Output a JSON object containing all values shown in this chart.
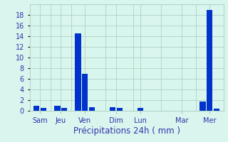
{
  "title": "Précipitations 24h ( mm )",
  "bar_color": "#0033cc",
  "background_color": "#d8f5ee",
  "grid_color": "#aaccbb",
  "text_color": "#3333aa",
  "ylim": [
    0,
    20
  ],
  "yticks": [
    0,
    2,
    4,
    6,
    8,
    10,
    12,
    14,
    16,
    18
  ],
  "day_labels": [
    "Sam",
    "Jeu",
    "Ven",
    "Dim",
    "Lun",
    "Mar",
    "Mer"
  ],
  "bar_positions": [
    1,
    2,
    4,
    5,
    7,
    8,
    9,
    12,
    13,
    16,
    22,
    25,
    26,
    27
  ],
  "bar_values": [
    1.0,
    0.5,
    1.0,
    0.6,
    14.5,
    7.0,
    0.7,
    0.7,
    0.5,
    0.5,
    0.0,
    1.7,
    19.0,
    0.4
  ],
  "day_tick_positions": [
    1.5,
    4.5,
    8.0,
    12.5,
    16.0,
    22.0,
    26.0
  ],
  "day_sep_positions": [
    3,
    6,
    11,
    15,
    19,
    24
  ],
  "xlim": [
    0,
    28
  ],
  "bar_width": 0.85,
  "xlabel_fontsize": 8.5,
  "tick_fontsize": 7
}
